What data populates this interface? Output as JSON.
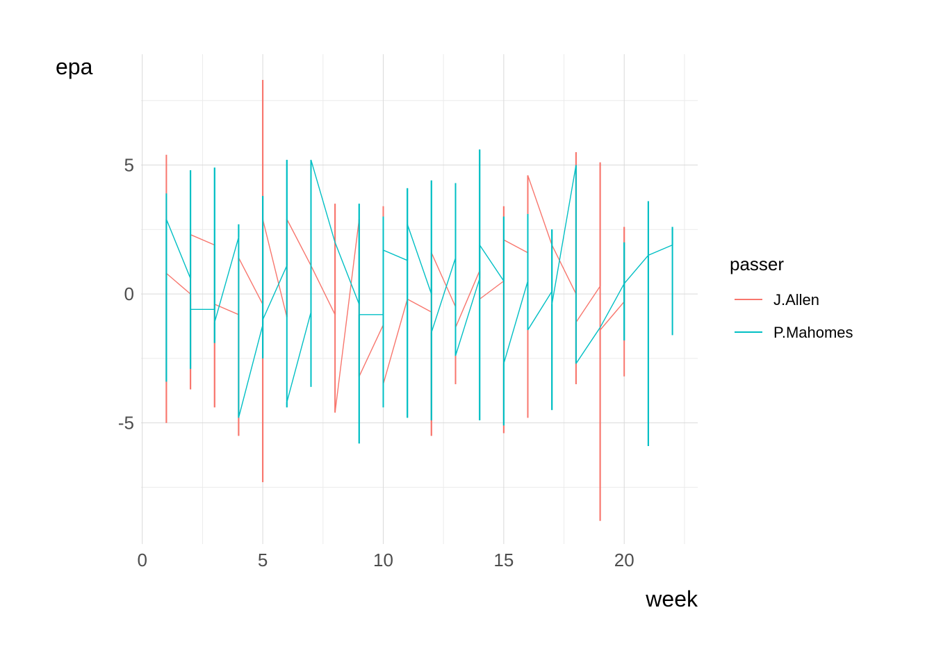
{
  "chart_data": {
    "type": "line",
    "xlabel": "week",
    "ylabel": "epa",
    "xlim": [
      -0.05,
      23.05
    ],
    "ylim": [
      -9.7,
      9.3
    ],
    "x_ticks": [
      0,
      5,
      10,
      15,
      20
    ],
    "y_ticks": [
      -5,
      0,
      5
    ],
    "grid": true,
    "legend": {
      "title": "passer",
      "position": "right"
    },
    "series": [
      {
        "name": "J.Allen",
        "color": "#F8766D",
        "points": [
          [
            1,
            5.4
          ],
          [
            1,
            -5.0
          ],
          [
            1,
            0.8
          ],
          [
            2,
            0.0
          ],
          [
            2,
            -3.7
          ],
          [
            2,
            2.3
          ],
          [
            3,
            1.9
          ],
          [
            3,
            -4.4
          ],
          [
            3,
            -0.4
          ],
          [
            4,
            -0.8
          ],
          [
            4,
            -5.5
          ],
          [
            4,
            1.4
          ],
          [
            5,
            -0.4
          ],
          [
            5,
            8.3
          ],
          [
            5,
            -7.3
          ],
          [
            5,
            2.9
          ],
          [
            6,
            -0.9
          ],
          [
            6,
            2.9
          ],
          [
            7,
            1.1
          ],
          [
            8,
            -0.8
          ],
          [
            8,
            3.5
          ],
          [
            8,
            -4.6
          ],
          [
            9,
            2.9
          ],
          [
            9,
            -3.2
          ],
          [
            10,
            -1.2
          ],
          [
            10,
            3.4
          ],
          [
            10,
            -3.5
          ],
          [
            11,
            -0.2
          ],
          [
            12,
            -0.7
          ],
          [
            12,
            -5.5
          ],
          [
            12,
            1.6
          ],
          [
            13,
            -0.5
          ],
          [
            13,
            -3.5
          ],
          [
            13,
            -1.3
          ],
          [
            14,
            0.9
          ],
          [
            14,
            -0.2
          ],
          [
            15,
            0.5
          ],
          [
            15,
            3.4
          ],
          [
            15,
            -5.4
          ],
          [
            15,
            2.1
          ],
          [
            16,
            1.6
          ],
          [
            16,
            -4.8
          ],
          [
            16,
            4.6
          ],
          [
            17,
            1.9
          ],
          [
            18,
            0.0
          ],
          [
            18,
            5.5
          ],
          [
            18,
            -3.5
          ],
          [
            18,
            -1.1
          ],
          [
            19,
            0.3
          ],
          [
            19,
            5.1
          ],
          [
            19,
            -8.8
          ],
          [
            19,
            -1.4
          ],
          [
            20,
            -0.3
          ],
          [
            20,
            2.6
          ],
          [
            20,
            -3.2
          ]
        ]
      },
      {
        "name": "P.Mahomes",
        "color": "#00BFC4",
        "points": [
          [
            1,
            3.9
          ],
          [
            1,
            -3.4
          ],
          [
            1,
            2.9
          ],
          [
            2,
            0.6
          ],
          [
            2,
            4.8
          ],
          [
            2,
            -2.9
          ],
          [
            2,
            -0.6
          ],
          [
            3,
            -0.6
          ],
          [
            3,
            4.9
          ],
          [
            3,
            -1.9
          ],
          [
            3,
            -1.1
          ],
          [
            4,
            2.2
          ],
          [
            4,
            2.7
          ],
          [
            4,
            -4.8
          ],
          [
            5,
            -1.2
          ],
          [
            5,
            3.8
          ],
          [
            5,
            -2.5
          ],
          [
            5,
            -1.0
          ],
          [
            6,
            1.1
          ],
          [
            6,
            5.2
          ],
          [
            6,
            -4.4
          ],
          [
            6,
            -4.2
          ],
          [
            7,
            -0.7
          ],
          [
            7,
            -3.6
          ],
          [
            7,
            5.2
          ],
          [
            8,
            2.0
          ],
          [
            9,
            -0.4
          ],
          [
            9,
            3.5
          ],
          [
            9,
            -5.8
          ],
          [
            9,
            -0.8
          ],
          [
            10,
            -0.8
          ],
          [
            10,
            3.0
          ],
          [
            10,
            -4.4
          ],
          [
            10,
            1.7
          ],
          [
            11,
            1.3
          ],
          [
            11,
            4.1
          ],
          [
            11,
            -4.8
          ],
          [
            11,
            2.7
          ],
          [
            12,
            0.0
          ],
          [
            12,
            4.4
          ],
          [
            12,
            -4.9
          ],
          [
            12,
            -1.5
          ],
          [
            13,
            1.4
          ],
          [
            13,
            4.3
          ],
          [
            13,
            -2.4
          ],
          [
            14,
            0.6
          ],
          [
            14,
            5.6
          ],
          [
            14,
            -4.9
          ],
          [
            14,
            1.9
          ],
          [
            15,
            0.5
          ],
          [
            15,
            3.0
          ],
          [
            15,
            -5.1
          ],
          [
            15,
            -2.7
          ],
          [
            16,
            0.5
          ],
          [
            16,
            3.1
          ],
          [
            16,
            -1.4
          ],
          [
            17,
            0.1
          ],
          [
            17,
            2.5
          ],
          [
            17,
            -4.5
          ],
          [
            17,
            -0.4
          ],
          [
            18,
            5.0
          ],
          [
            18,
            -2.7
          ],
          [
            19,
            -1.3
          ],
          [
            20,
            0.4
          ],
          [
            20,
            2.0
          ],
          [
            20,
            -1.8
          ],
          [
            20,
            0.4
          ],
          [
            21,
            1.5
          ],
          [
            21,
            3.6
          ],
          [
            21,
            -5.9
          ],
          [
            21,
            1.5
          ],
          [
            22,
            1.9
          ],
          [
            22,
            2.6
          ],
          [
            22,
            -1.6
          ]
        ]
      }
    ]
  }
}
